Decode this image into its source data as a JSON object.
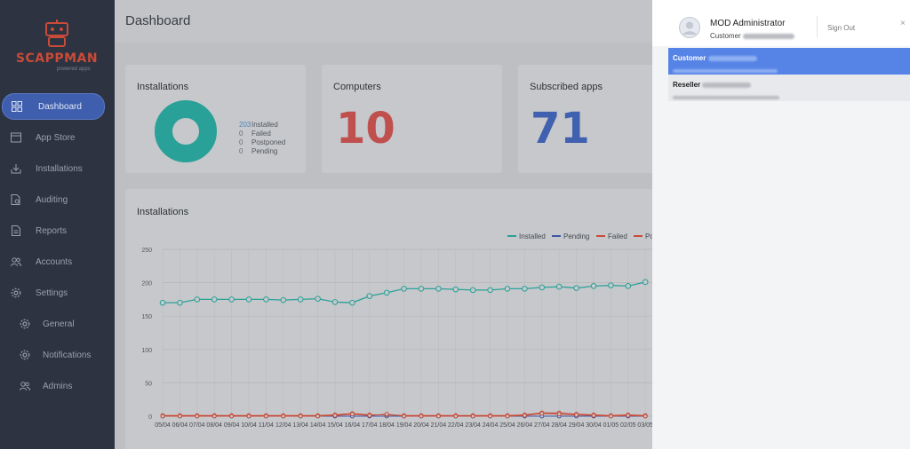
{
  "brand": {
    "name": "SCAPPMAN",
    "tagline": "powered apps"
  },
  "sidebar": {
    "items": [
      {
        "label": "Dashboard",
        "icon": "grid-icon",
        "active": true
      },
      {
        "label": "App Store",
        "icon": "store-icon"
      },
      {
        "label": "Installations",
        "icon": "download-icon"
      },
      {
        "label": "Auditing",
        "icon": "audit-icon"
      },
      {
        "label": "Reports",
        "icon": "report-icon"
      },
      {
        "label": "Accounts",
        "icon": "users-icon"
      },
      {
        "label": "Settings",
        "icon": "gear-icon"
      },
      {
        "label": "General",
        "icon": "gear-icon",
        "sub": true
      },
      {
        "label": "Notifications",
        "icon": "gear-icon",
        "sub": true
      },
      {
        "label": "Admins",
        "icon": "users-icon",
        "sub": true
      }
    ]
  },
  "header": {
    "title": "Dashboard"
  },
  "cards": {
    "installations": {
      "title": "Installations",
      "legend": [
        {
          "count": "203",
          "label": "Installed"
        },
        {
          "count": "0",
          "label": "Failed"
        },
        {
          "count": "0",
          "label": "Postponed"
        },
        {
          "count": "0",
          "label": "Pending"
        }
      ]
    },
    "computers": {
      "title": "Computers",
      "value": "10"
    },
    "subscribed": {
      "title": "Subscribed apps",
      "value": "71"
    }
  },
  "colors": {
    "installed": "#2aa198",
    "pending": "#3d57a8",
    "failed": "#c94b38",
    "computers": "#c0504d",
    "subscribed": "#4060b0"
  },
  "chart_data": {
    "type": "line",
    "title": "Installations",
    "ylim": [
      0,
      250
    ],
    "yticks": [
      0,
      50,
      100,
      150,
      200,
      250
    ],
    "grid": true,
    "legend_position": "top-right",
    "categories": [
      "05/04",
      "06/04",
      "07/04",
      "08/04",
      "09/04",
      "10/04",
      "11/04",
      "12/04",
      "13/04",
      "14/04",
      "15/04",
      "16/04",
      "17/04",
      "18/04",
      "19/04",
      "20/04",
      "21/04",
      "22/04",
      "23/04",
      "24/04",
      "25/04",
      "26/04",
      "27/04",
      "28/04",
      "29/04",
      "30/04",
      "01/05",
      "02/05",
      "03/05"
    ],
    "series": [
      {
        "name": "Installed",
        "color": "#2aa198",
        "values": [
          170,
          170,
          175,
          175,
          175,
          175,
          175,
          174,
          175,
          176,
          171,
          170,
          180,
          185,
          191,
          191,
          191,
          190,
          189,
          189,
          191,
          191,
          193,
          194,
          192,
          195,
          196,
          195,
          201
        ]
      },
      {
        "name": "Pending",
        "color": "#3d57a8",
        "values": [
          0,
          0,
          0,
          0,
          0,
          0,
          0,
          0,
          0,
          0,
          0,
          0,
          0,
          0,
          0,
          0,
          0,
          0,
          0,
          0,
          0,
          0,
          0,
          0,
          0,
          0,
          0,
          0,
          0
        ]
      },
      {
        "name": "Failed",
        "color": "#c94b38",
        "values": [
          1,
          1,
          1,
          1,
          1,
          1,
          1,
          1,
          1,
          1,
          2,
          4,
          2,
          2,
          1,
          1,
          1,
          1,
          1,
          1,
          1,
          2,
          5,
          5,
          3,
          2,
          1,
          2,
          1
        ]
      },
      {
        "name": "Po",
        "color": "#c94b38",
        "values": [
          0,
          0,
          0,
          0,
          0,
          0,
          0,
          0,
          0,
          0,
          1,
          3,
          1,
          3,
          0,
          0,
          0,
          0,
          0,
          0,
          0,
          1,
          4,
          3,
          2,
          1,
          0,
          1,
          0
        ]
      }
    ]
  },
  "user_panel": {
    "name": "MOD Administrator",
    "role": "Customer",
    "sign_out": "Sign Out",
    "close": "×",
    "accounts": [
      {
        "type": "Customer",
        "selected": true
      },
      {
        "type": "Reseller",
        "selected": false
      }
    ]
  }
}
